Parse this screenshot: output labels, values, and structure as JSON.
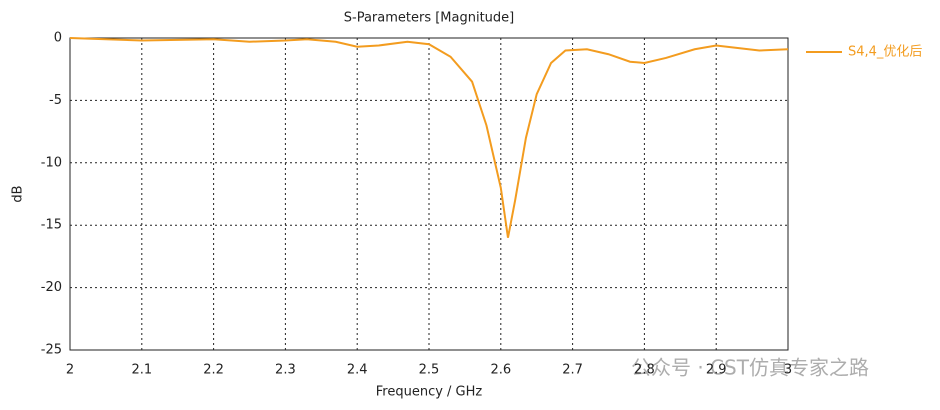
{
  "chart_data": {
    "type": "line",
    "title": "S-Parameters [Magnitude]",
    "x_label": "Frequency / GHz",
    "y_label": "dB",
    "x": [
      2.0,
      2.05,
      2.1,
      2.15,
      2.2,
      2.25,
      2.3,
      2.33,
      2.37,
      2.4,
      2.43,
      2.47,
      2.5,
      2.53,
      2.56,
      2.58,
      2.6,
      2.61,
      2.62,
      2.635,
      2.65,
      2.67,
      2.69,
      2.72,
      2.75,
      2.78,
      2.8,
      2.83,
      2.87,
      2.9,
      2.93,
      2.96,
      3.0
    ],
    "series": [
      {
        "name": "S4,4_优化后",
        "color": "#f39c1f",
        "values": [
          0,
          -0.1,
          -0.2,
          -0.15,
          -0.1,
          -0.3,
          -0.2,
          -0.1,
          -0.3,
          -0.7,
          -0.6,
          -0.3,
          -0.5,
          -1.5,
          -3.5,
          -7,
          -12,
          -16,
          -13,
          -8,
          -4.5,
          -2,
          -1,
          -0.9,
          -1.3,
          -1.9,
          -2,
          -1.6,
          -0.9,
          -0.6,
          -0.8,
          -1,
          -0.9
        ]
      }
    ],
    "xlim": [
      2,
      3
    ],
    "xticks": [
      2,
      2.1,
      2.2,
      2.3,
      2.4,
      2.5,
      2.6,
      2.7,
      2.8,
      2.9,
      3
    ],
    "ylim": [
      -25,
      0
    ],
    "yticks": [
      0,
      -5,
      -10,
      -15,
      -20,
      -25
    ],
    "grid": true,
    "legend": "right",
    "watermark": "公众号 · CST仿真专家之路"
  }
}
